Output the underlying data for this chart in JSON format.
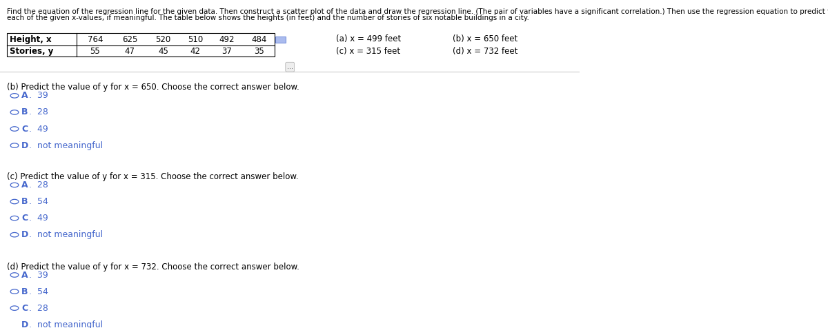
{
  "header_line1": "Find the equation of the regression line for the given data. Then construct a scatter plot of the data and draw the regression line. (The pair of variables have a significant correlation.) Then use the regression equation to predict the value of y for",
  "header_line2": "each of the given x-values, if meaningful. The table below shows the heights (in feet) and the number of stories of six notable buildings in a city.",
  "table_headers": [
    "Height, x",
    "764",
    "625",
    "520",
    "510",
    "492",
    "484"
  ],
  "table_row2": [
    "Stories, y",
    "55",
    "47",
    "45",
    "42",
    "37",
    "35"
  ],
  "x_values_labels": [
    "(a) x = 499 feet",
    "(b) x = 650 feet",
    "(c) x = 315 feet",
    "(d) x = 732 feet"
  ],
  "section_b_question": "(b) Predict the value of y for x = 650. Choose the correct answer below.",
  "section_b_options": [
    "A.  39",
    "B.  28",
    "C.  49",
    "D.  not meaningful"
  ],
  "section_c_question": "(c) Predict the value of y for x = 315. Choose the correct answer below.",
  "section_c_options": [
    "A.  28",
    "B.  54",
    "C.  49",
    "D.  not meaningful"
  ],
  "section_d_question": "(d) Predict the value of y for x = 732. Choose the correct answer below.",
  "section_d_options": [
    "A.  39",
    "B.  54",
    "C.  28",
    "D.  not meaningful"
  ],
  "bg_color": "#ffffff",
  "text_color": "#000000",
  "option_color": "#4466cc",
  "header_fontsize": 7.5,
  "table_fontsize": 8.5,
  "question_fontsize": 8.5,
  "option_fontsize": 9.0
}
